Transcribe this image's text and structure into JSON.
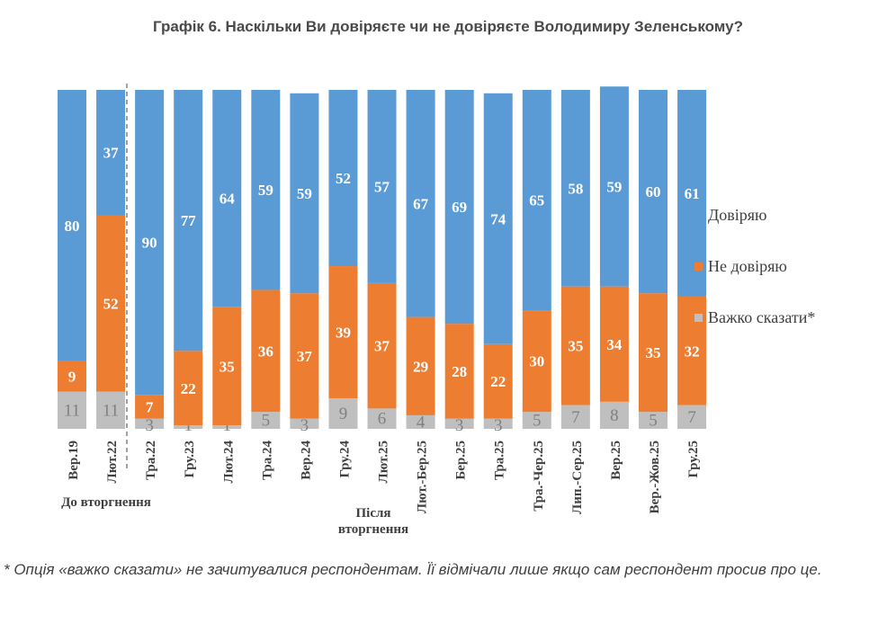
{
  "title": "Графік 6. Наскільки Ви довіряєте чи не довіряєте Володимиру Зеленському?",
  "chart_data": {
    "type": "stacked-bar",
    "title": "Графік 6. Наскільки Ви довіряєте чи не довіряєте Володимиру Зеленському?",
    "categories": [
      "Вер.19",
      "Лют.22",
      "Тра.22",
      "Гру.23",
      "Лют.24",
      "Тра.24",
      "Вер.24",
      "Гру.24",
      "Лют.25",
      "Лют.-Бер.25",
      "Бер.25",
      "Тра.25",
      "Тра.-Чер.25",
      "Лип.-Сер.25",
      "Вер.25",
      "Вер.-Жов.25",
      "Гру.25"
    ],
    "series": [
      {
        "name": "Важко сказати*",
        "color": "#BFBFBF",
        "values": [
          11,
          11,
          3,
          1,
          1,
          5,
          3,
          9,
          6,
          4,
          3,
          3,
          5,
          7,
          8,
          5,
          7
        ]
      },
      {
        "name": "Не довіряю",
        "color": "#ED7D31",
        "values": [
          9,
          52,
          7,
          22,
          35,
          36,
          37,
          39,
          37,
          29,
          28,
          22,
          30,
          35,
          34,
          35,
          32
        ]
      },
      {
        "name": "Довіряю",
        "color": "#5B9BD5",
        "values": [
          80,
          37,
          90,
          77,
          64,
          59,
          59,
          52,
          57,
          67,
          69,
          74,
          65,
          58,
          59,
          60,
          61
        ]
      }
    ],
    "ylim": [
      0,
      100
    ],
    "legend": "right",
    "groups": [
      {
        "label": "До вторгнення"
      },
      {
        "label": "Після вторгнення"
      }
    ]
  },
  "footnote": "* Опція «важко сказати» не зачитувалися респондентам. Її відмічали лише якщо сам респондент просив про це."
}
